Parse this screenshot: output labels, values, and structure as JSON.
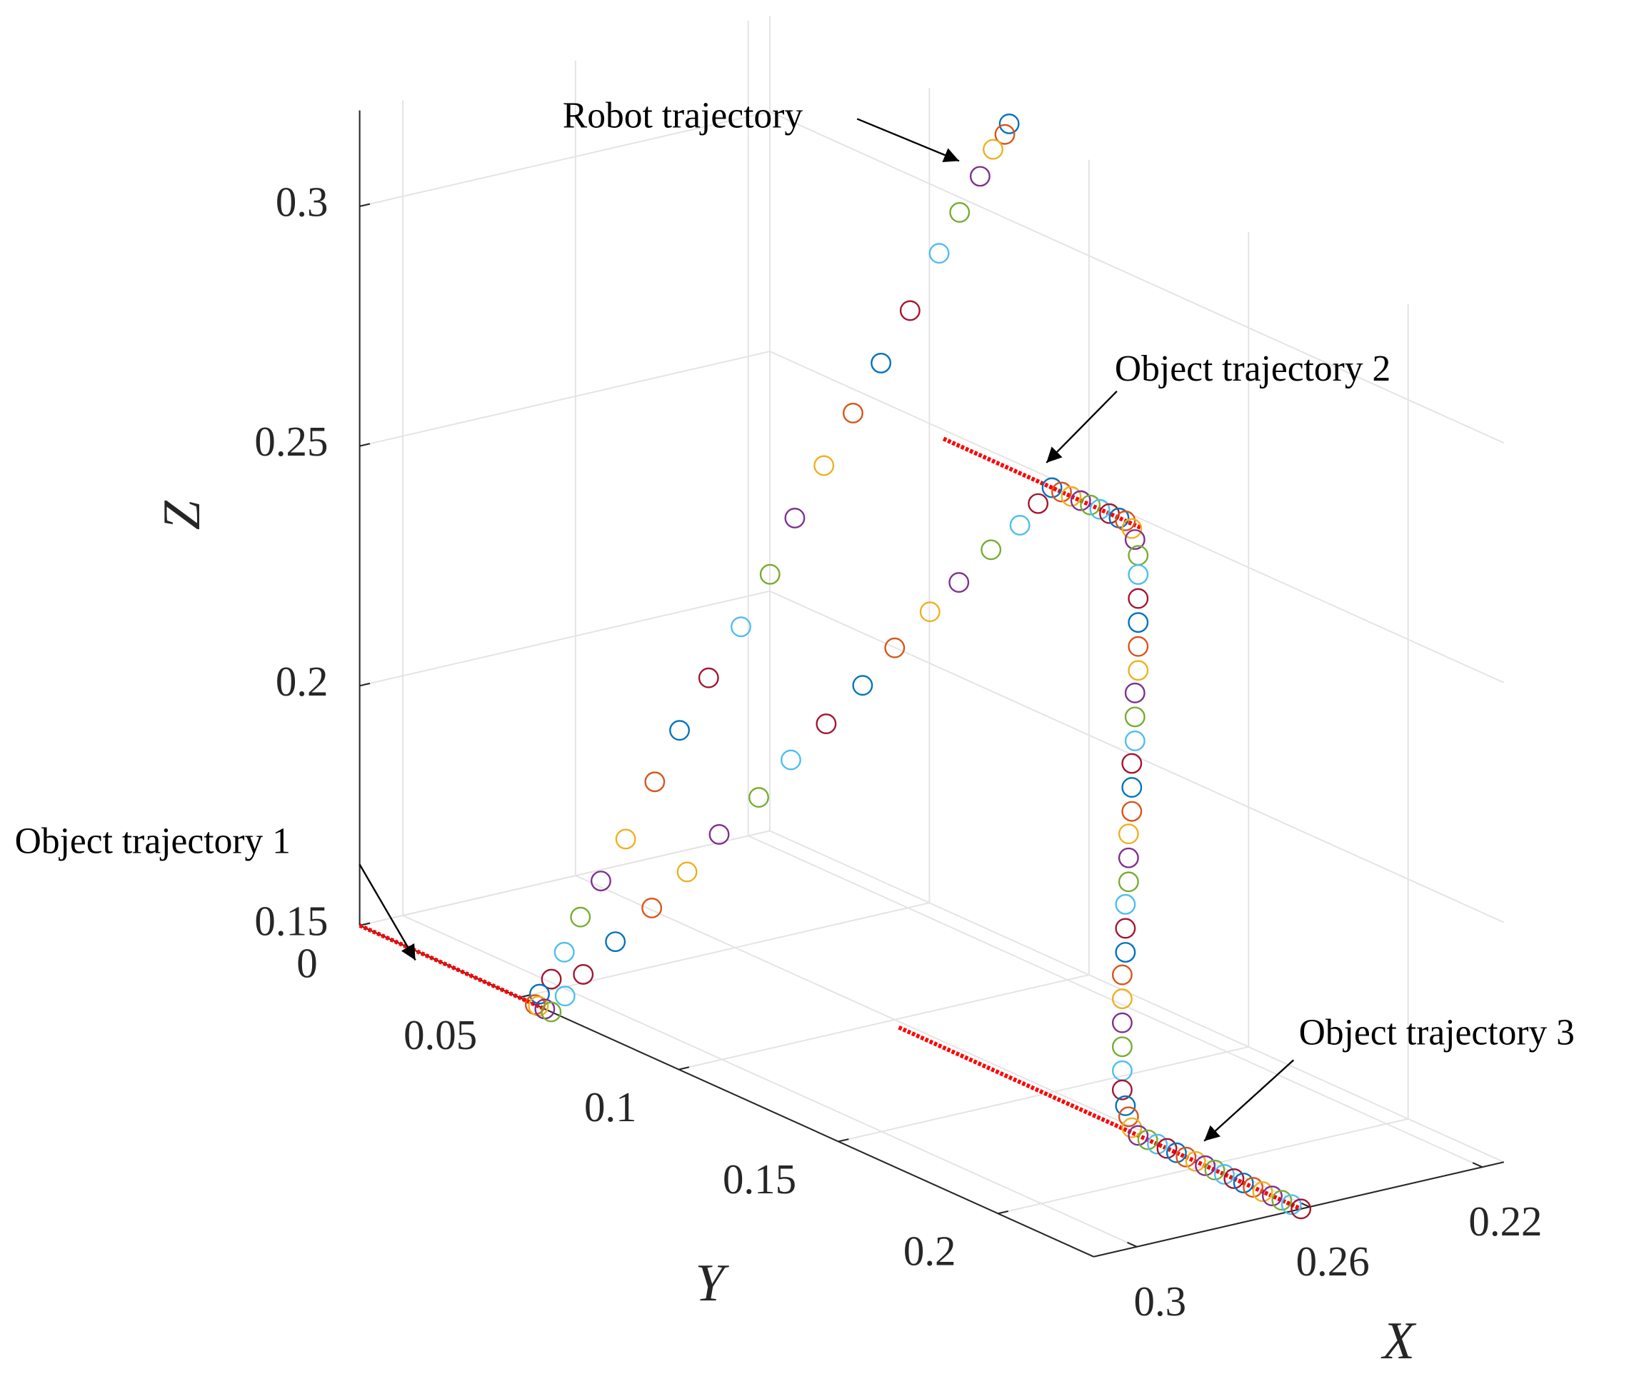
{
  "chart_data": {
    "type": "scatter3",
    "xlabel": "X",
    "ylabel": "Y",
    "zlabel": "Z",
    "xlim": [
      0.215,
      0.31
    ],
    "ylim": [
      0,
      0.23
    ],
    "zlim": [
      0.15,
      0.32
    ],
    "xdir": "reverse",
    "xticks": [
      0.22,
      0.26,
      0.3
    ],
    "yticks": [
      0,
      0.05,
      0.1,
      0.15,
      0.2
    ],
    "zticks": [
      0.15,
      0.2,
      0.25,
      0.3
    ],
    "grid": true,
    "marker": "open-circle",
    "marker_colors": [
      "#0072BD",
      "#D95319",
      "#EDB120",
      "#7E2F8E",
      "#77AC30",
      "#4DBEEE",
      "#A2142F"
    ],
    "x": [
      0.215,
      0.216,
      0.218,
      0.221,
      0.225,
      0.229,
      0.235,
      0.241,
      0.246,
      0.252,
      0.258,
      0.263,
      0.269,
      0.275,
      0.281,
      0.286,
      0.292,
      0.297,
      0.301,
      0.304,
      0.307,
      0.309,
      0.31,
      0.31,
      0.31,
      0.31,
      0.309,
      0.307,
      0.304,
      0.3,
      0.297,
      0.294,
      0.29,
      0.287,
      0.284,
      0.28,
      0.277,
      0.274,
      0.271,
      0.268,
      0.265,
      0.263,
      0.262,
      0.262,
      0.262,
      0.262,
      0.262,
      0.262,
      0.262,
      0.262,
      0.262,
      0.262,
      0.262,
      0.262,
      0.262,
      0.262,
      0.262,
      0.262,
      0.262,
      0.262,
      0.262,
      0.262,
      0.262,
      0.262,
      0.262,
      0.262,
      0.262,
      0.262,
      0.262,
      0.262,
      0.262,
      0.262,
      0.262,
      0.262,
      0.262,
      0.262,
      0.262,
      0.262,
      0.262,
      0.262,
      0.262,
      0.262,
      0.262,
      0.262,
      0.262,
      0.262,
      0.262,
      0.262,
      0.262,
      0.262,
      0.262,
      0.262,
      0.262,
      0.262,
      0.262,
      0.262,
      0.262,
      0.262
    ],
    "y": [
      0.075,
      0.075,
      0.074,
      0.074,
      0.073,
      0.072,
      0.071,
      0.07,
      0.068,
      0.067,
      0.066,
      0.065,
      0.064,
      0.062,
      0.061,
      0.06,
      0.059,
      0.058,
      0.057,
      0.056,
      0.056,
      0.055,
      0.055,
      0.056,
      0.058,
      0.06,
      0.063,
      0.066,
      0.072,
      0.078,
      0.085,
      0.091,
      0.098,
      0.104,
      0.111,
      0.117,
      0.123,
      0.13,
      0.135,
      0.141,
      0.146,
      0.149,
      0.152,
      0.155,
      0.158,
      0.161,
      0.164,
      0.167,
      0.17,
      0.173,
      0.175,
      0.177,
      0.178,
      0.179,
      0.179,
      0.179,
      0.179,
      0.179,
      0.179,
      0.178,
      0.178,
      0.178,
      0.177,
      0.177,
      0.177,
      0.176,
      0.176,
      0.176,
      0.175,
      0.175,
      0.175,
      0.174,
      0.174,
      0.174,
      0.174,
      0.174,
      0.174,
      0.175,
      0.176,
      0.177,
      0.179,
      0.182,
      0.185,
      0.188,
      0.191,
      0.194,
      0.197,
      0.2,
      0.203,
      0.206,
      0.209,
      0.212,
      0.215,
      0.218,
      0.221,
      0.224,
      0.227,
      0.23
    ],
    "z": [
      0.32,
      0.318,
      0.315,
      0.31,
      0.303,
      0.295,
      0.284,
      0.274,
      0.264,
      0.254,
      0.244,
      0.233,
      0.223,
      0.213,
      0.203,
      0.193,
      0.182,
      0.174,
      0.167,
      0.16,
      0.155,
      0.152,
      0.15,
      0.15,
      0.15,
      0.15,
      0.154,
      0.159,
      0.167,
      0.175,
      0.184,
      0.193,
      0.202,
      0.211,
      0.22,
      0.229,
      0.238,
      0.247,
      0.254,
      0.262,
      0.268,
      0.273,
      0.277,
      0.277,
      0.277,
      0.277,
      0.277,
      0.277,
      0.277,
      0.277,
      0.277,
      0.276,
      0.274,
      0.271,
      0.267,
      0.262,
      0.257,
      0.252,
      0.247,
      0.242,
      0.237,
      0.232,
      0.227,
      0.222,
      0.217,
      0.212,
      0.207,
      0.202,
      0.197,
      0.192,
      0.187,
      0.182,
      0.177,
      0.172,
      0.167,
      0.162,
      0.158,
      0.155,
      0.153,
      0.151,
      0.15,
      0.15,
      0.15,
      0.15,
      0.15,
      0.15,
      0.15,
      0.15,
      0.15,
      0.15,
      0.15,
      0.15,
      0.15,
      0.15,
      0.15,
      0.15,
      0.15,
      0.15
    ],
    "object_lines": [
      {
        "color": "#ff0000",
        "x": [
          0.31,
          0.31
        ],
        "y": [
          0,
          0.058
        ],
        "z": [
          0.15,
          0.15
        ]
      },
      {
        "color": "#ff0000",
        "x": [
          0.262,
          0.262
        ],
        "y": [
          0.118,
          0.18
        ],
        "z": [
          0.277,
          0.277
        ]
      },
      {
        "color": "#ff0000",
        "x": [
          0.262,
          0.262
        ],
        "y": [
          0.104,
          0.23
        ],
        "z": [
          0.15,
          0.15
        ]
      }
    ],
    "annotations": [
      "Robot trajectory",
      "Object trajectory 2",
      "Object trajectory 1",
      "Object trajectory 3"
    ]
  }
}
